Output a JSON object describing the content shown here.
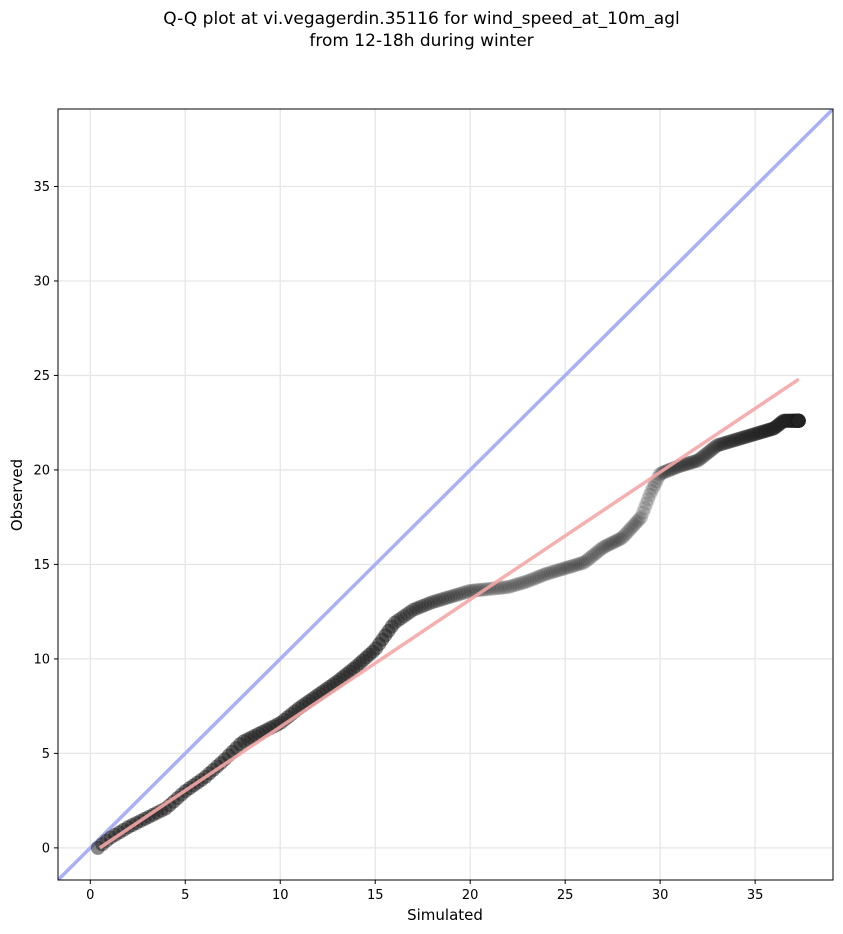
{
  "chart_data": {
    "type": "scatter",
    "title_line1": "Q-Q plot at vi.vegagerdin.35116 for wind_speed_at_10m_agl",
    "title_line2": "from 12-18h during winter",
    "xlabel": "Simulated",
    "ylabel": "Observed",
    "xlim": [
      -1.7,
      39.1
    ],
    "ylim": [
      -1.7,
      39.1
    ],
    "xticks": [
      0,
      5,
      10,
      15,
      20,
      25,
      30,
      35
    ],
    "yticks": [
      0,
      5,
      10,
      15,
      20,
      25,
      30,
      35
    ],
    "grid": true,
    "identity_line": {
      "from": [
        -1.7,
        -1.7
      ],
      "to": [
        39.1,
        39.1
      ],
      "color": "#aab0f4"
    },
    "fit_line": {
      "from": [
        0.5,
        0.0
      ],
      "to": [
        37.3,
        24.8
      ],
      "color": "#f4a6a6"
    },
    "quantile_anchors": {
      "simulated": [
        0.4,
        1,
        2,
        3,
        4,
        5,
        6,
        7,
        8,
        9,
        10,
        11,
        12,
        13,
        14,
        15,
        16,
        17,
        18,
        19,
        20,
        21,
        22,
        23,
        24,
        25,
        26,
        27,
        28,
        29,
        29.5,
        30,
        31,
        32,
        33,
        34,
        35,
        36,
        36.5,
        37.3
      ],
      "observed": [
        0.0,
        0.5,
        1.1,
        1.6,
        2.1,
        3.0,
        3.7,
        4.6,
        5.6,
        6.1,
        6.6,
        7.4,
        8.1,
        8.8,
        9.6,
        10.5,
        11.9,
        12.6,
        13.0,
        13.3,
        13.6,
        13.7,
        13.8,
        14.1,
        14.5,
        14.8,
        15.1,
        15.9,
        16.4,
        17.5,
        18.8,
        19.8,
        20.2,
        20.5,
        21.3,
        21.6,
        21.9,
        22.2,
        22.6,
        22.6
      ]
    },
    "point_count": 420,
    "point_color": "#222222"
  }
}
